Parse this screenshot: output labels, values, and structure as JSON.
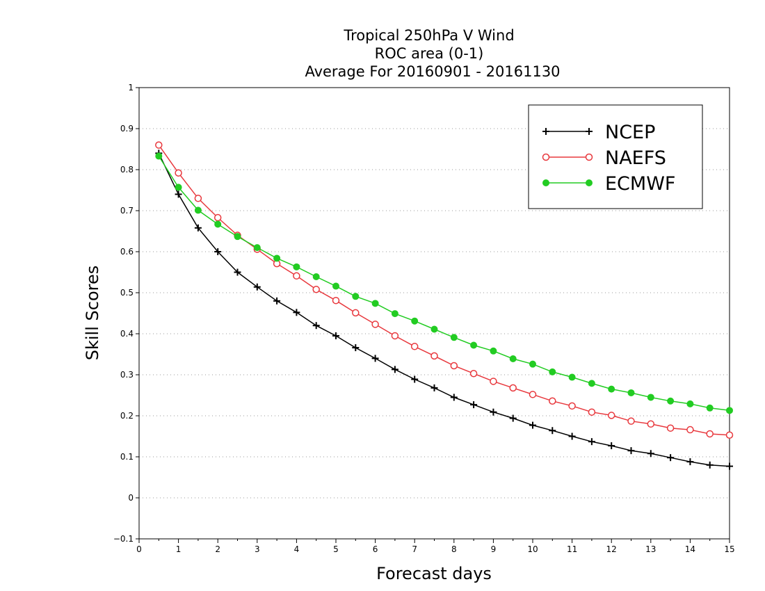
{
  "chart_data": {
    "type": "line",
    "title_lines": [
      "Tropical 250hPa V Wind",
      "ROC area (0-1)",
      "Average For 20160901 - 20161130"
    ],
    "xlabel": "Forecast days",
    "ylabel": "Skill Scores",
    "xlim": [
      0,
      15
    ],
    "ylim": [
      -0.1,
      1
    ],
    "x_ticks": [
      "0",
      "1",
      "2",
      "3",
      "4",
      "5",
      "6",
      "7",
      "8",
      "9",
      "10",
      "11",
      "12",
      "13",
      "14",
      "15"
    ],
    "y_ticks": [
      "−0.1",
      "0",
      "0.1",
      "0.2",
      "0.3",
      "0.4",
      "0.5",
      "0.6",
      "0.7",
      "0.8",
      "0.9",
      "1"
    ],
    "grid": "horizontal dotted",
    "legend_position": "top-right",
    "x": [
      0.5,
      1,
      1.5,
      2,
      2.5,
      3,
      3.5,
      4,
      4.5,
      5,
      5.5,
      6,
      6.5,
      7,
      7.5,
      8,
      8.5,
      9,
      9.5,
      10,
      10.5,
      11,
      11.5,
      12,
      12.5,
      13,
      13.5,
      14,
      14.5,
      15
    ],
    "series": [
      {
        "name": "NCEP",
        "color": "#000000",
        "marker": "plus",
        "values": [
          0.84,
          0.74,
          0.658,
          0.6,
          0.55,
          0.514,
          0.48,
          0.452,
          0.42,
          0.395,
          0.366,
          0.34,
          0.313,
          0.289,
          0.268,
          0.245,
          0.227,
          0.209,
          0.194,
          0.177,
          0.164,
          0.15,
          0.137,
          0.127,
          0.115,
          0.108,
          0.098,
          0.088,
          0.08,
          0.077
        ]
      },
      {
        "name": "NAEFS",
        "color": "#e8383d",
        "marker": "open-circle",
        "values": [
          0.86,
          0.792,
          0.73,
          0.683,
          0.64,
          0.606,
          0.571,
          0.541,
          0.508,
          0.481,
          0.451,
          0.423,
          0.395,
          0.369,
          0.346,
          0.322,
          0.303,
          0.284,
          0.268,
          0.252,
          0.236,
          0.224,
          0.209,
          0.201,
          0.187,
          0.18,
          0.17,
          0.166,
          0.156,
          0.153
        ]
      },
      {
        "name": "ECMWF",
        "color": "#22cc22",
        "marker": "filled-circle",
        "values": [
          0.833,
          0.757,
          0.701,
          0.667,
          0.637,
          0.61,
          0.584,
          0.563,
          0.539,
          0.516,
          0.491,
          0.474,
          0.449,
          0.431,
          0.411,
          0.391,
          0.372,
          0.358,
          0.339,
          0.326,
          0.307,
          0.294,
          0.279,
          0.265,
          0.256,
          0.245,
          0.236,
          0.229,
          0.219,
          0.213
        ]
      }
    ]
  }
}
